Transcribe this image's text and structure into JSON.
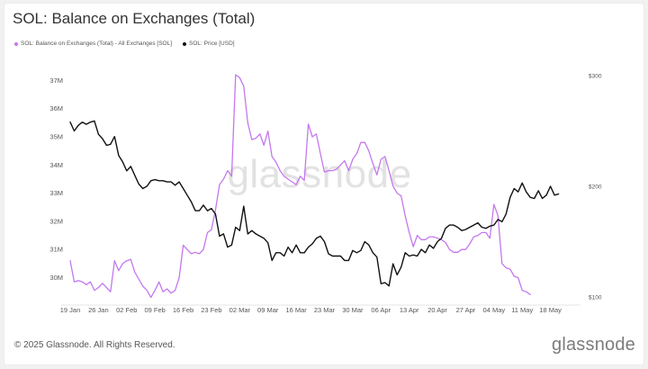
{
  "title": "SOL: Balance on Exchanges (Total)",
  "footer": "© 2025 Glassnode. All Rights Reserved.",
  "brand": "glassnode",
  "watermark": "glassnode",
  "chart_data": {
    "type": "line",
    "title": "SOL: Balance on Exchanges (Total)",
    "x_tick_labels": [
      "19 Jan",
      "26 Jan",
      "02 Feb",
      "09 Feb",
      "16 Feb",
      "23 Feb",
      "02 Mar",
      "09 Mar",
      "16 Mar",
      "23 Mar",
      "30 Mar",
      "06 Apr",
      "13 Apr",
      "20 Apr",
      "27 Apr",
      "04 May",
      "11 May",
      "18 May"
    ],
    "x_tick_days": [
      0,
      7,
      14,
      21,
      28,
      35,
      42,
      49,
      56,
      63,
      70,
      77,
      84,
      91,
      98,
      105,
      112,
      119
    ],
    "x_range_days": [
      0,
      126
    ],
    "left_axis": {
      "ticks": [
        30,
        31,
        32,
        33,
        34,
        35,
        36,
        37
      ],
      "tick_labels": [
        "30M",
        "31M",
        "32M",
        "33M",
        "34M",
        "35M",
        "36M",
        "37M"
      ],
      "range": [
        29.25,
        37.3
      ]
    },
    "right_axis": {
      "ticks": [
        100,
        200,
        300
      ],
      "tick_labels": [
        "$100",
        "$200",
        "$300"
      ],
      "range": [
        100,
        300
      ]
    },
    "grid": false,
    "legend_position": "top-left",
    "series": [
      {
        "name": "SOL: Balance on Exchanges (Total) - All Exchanges [SOL]",
        "color": "#c478ee",
        "axis": "left",
        "points": [
          [
            0,
            30.6
          ],
          [
            1,
            29.85
          ],
          [
            2,
            29.9
          ],
          [
            3,
            29.85
          ],
          [
            4,
            29.75
          ],
          [
            5,
            29.85
          ],
          [
            6,
            29.55
          ],
          [
            7,
            29.65
          ],
          [
            8,
            29.8
          ],
          [
            9,
            29.65
          ],
          [
            10,
            29.5
          ],
          [
            11,
            30.6
          ],
          [
            12,
            30.25
          ],
          [
            13,
            30.5
          ],
          [
            14,
            30.6
          ],
          [
            15,
            30.65
          ],
          [
            16,
            30.2
          ],
          [
            17,
            29.95
          ],
          [
            18,
            29.7
          ],
          [
            19,
            29.55
          ],
          [
            20,
            29.3
          ],
          [
            21,
            29.55
          ],
          [
            22,
            29.85
          ],
          [
            23,
            29.5
          ],
          [
            24,
            29.6
          ],
          [
            25,
            29.45
          ],
          [
            26,
            29.55
          ],
          [
            27,
            30
          ],
          [
            28,
            31.15
          ],
          [
            29,
            31
          ],
          [
            30,
            30.85
          ],
          [
            31,
            30.9
          ],
          [
            32,
            30.85
          ],
          [
            33,
            31
          ],
          [
            34,
            31.6
          ],
          [
            35,
            31.7
          ],
          [
            36,
            32.4
          ],
          [
            37,
            33.3
          ],
          [
            38,
            33.5
          ],
          [
            39,
            33.8
          ],
          [
            40,
            33.6
          ],
          [
            41,
            37.2
          ],
          [
            42,
            37.1
          ],
          [
            43,
            36.8
          ],
          [
            44,
            35.5
          ],
          [
            45,
            34.9
          ],
          [
            46,
            34.95
          ],
          [
            47,
            35.1
          ],
          [
            48,
            34.7
          ],
          [
            49,
            35.2
          ],
          [
            50,
            34.3
          ],
          [
            51,
            34.1
          ],
          [
            52,
            33.8
          ],
          [
            53,
            33.6
          ],
          [
            54,
            33.5
          ],
          [
            55,
            33.4
          ],
          [
            56,
            33.3
          ],
          [
            57,
            33.6
          ],
          [
            58,
            33.45
          ],
          [
            59,
            35.45
          ],
          [
            60,
            35
          ],
          [
            61,
            35.1
          ],
          [
            62,
            34.4
          ],
          [
            63,
            33.75
          ],
          [
            64,
            33.8
          ],
          [
            65,
            33.8
          ],
          [
            66,
            33.85
          ],
          [
            67,
            34
          ],
          [
            68,
            34.15
          ],
          [
            69,
            33.8
          ],
          [
            70,
            34.2
          ],
          [
            71,
            34.4
          ],
          [
            72,
            34.8
          ],
          [
            73,
            34.8
          ],
          [
            74,
            34.5
          ],
          [
            75,
            34.05
          ],
          [
            76,
            33.65
          ],
          [
            77,
            34.2
          ],
          [
            78,
            34.3
          ],
          [
            79,
            33.8
          ],
          [
            80,
            33.25
          ],
          [
            81,
            33
          ],
          [
            82,
            32.9
          ],
          [
            83,
            32.2
          ],
          [
            84,
            31.6
          ],
          [
            85,
            31.1
          ],
          [
            86,
            31.5
          ],
          [
            87,
            31.35
          ],
          [
            88,
            31.35
          ],
          [
            89,
            31.45
          ],
          [
            90,
            31.45
          ],
          [
            91,
            31.4
          ],
          [
            92,
            31.35
          ],
          [
            93,
            31.25
          ],
          [
            94,
            31
          ],
          [
            95,
            30.9
          ],
          [
            96,
            30.9
          ],
          [
            97,
            31
          ],
          [
            98,
            31
          ],
          [
            99,
            31.2
          ],
          [
            100,
            31.45
          ],
          [
            101,
            31.5
          ],
          [
            102,
            31.6
          ],
          [
            103,
            31.6
          ],
          [
            104,
            31.4
          ],
          [
            105,
            32.6
          ],
          [
            106,
            32.2
          ],
          [
            107,
            30.5
          ],
          [
            108,
            30.35
          ],
          [
            109,
            30.3
          ],
          [
            110,
            30.05
          ],
          [
            111,
            30
          ],
          [
            112,
            29.55
          ],
          [
            113,
            29.5
          ],
          [
            114,
            29.4
          ]
        ]
      },
      {
        "name": "SOL: Price [USD]",
        "color": "#111111",
        "axis": "right",
        "points": [
          [
            0,
            258
          ],
          [
            1,
            250
          ],
          [
            2,
            255
          ],
          [
            3,
            258
          ],
          [
            4,
            256
          ],
          [
            5,
            258
          ],
          [
            6,
            259
          ],
          [
            7,
            247
          ],
          [
            8,
            243
          ],
          [
            9,
            237
          ],
          [
            10,
            238
          ],
          [
            11,
            245
          ],
          [
            12,
            228
          ],
          [
            13,
            222
          ],
          [
            14,
            214
          ],
          [
            15,
            218
          ],
          [
            16,
            210
          ],
          [
            17,
            202
          ],
          [
            18,
            198
          ],
          [
            19,
            200
          ],
          [
            20,
            205
          ],
          [
            21,
            206
          ],
          [
            22,
            205
          ],
          [
            23,
            205
          ],
          [
            24,
            204
          ],
          [
            25,
            204
          ],
          [
            26,
            201
          ],
          [
            27,
            204
          ],
          [
            28,
            198
          ],
          [
            29,
            192
          ],
          [
            30,
            186
          ],
          [
            31,
            178
          ],
          [
            32,
            178
          ],
          [
            33,
            183
          ],
          [
            34,
            178
          ],
          [
            35,
            180
          ],
          [
            36,
            175
          ],
          [
            37,
            155
          ],
          [
            38,
            157
          ],
          [
            39,
            145
          ],
          [
            40,
            147
          ],
          [
            41,
            163
          ],
          [
            42,
            160
          ],
          [
            43,
            182
          ],
          [
            44,
            157
          ],
          [
            45,
            160
          ],
          [
            46,
            157
          ],
          [
            47,
            155
          ],
          [
            48,
            153
          ],
          [
            49,
            149
          ],
          [
            50,
            133
          ],
          [
            51,
            140
          ],
          [
            52,
            140
          ],
          [
            53,
            137
          ],
          [
            54,
            145
          ],
          [
            55,
            140
          ],
          [
            56,
            147
          ],
          [
            57,
            140
          ],
          [
            58,
            140
          ],
          [
            59,
            145
          ],
          [
            60,
            148
          ],
          [
            61,
            153
          ],
          [
            62,
            155
          ],
          [
            63,
            150
          ],
          [
            64,
            139
          ],
          [
            65,
            137
          ],
          [
            66,
            137
          ],
          [
            67,
            137
          ],
          [
            68,
            133
          ],
          [
            69,
            133
          ],
          [
            70,
            142
          ],
          [
            71,
            140
          ],
          [
            72,
            142
          ],
          [
            73,
            150
          ],
          [
            74,
            147
          ],
          [
            75,
            140
          ],
          [
            76,
            136
          ],
          [
            77,
            112
          ],
          [
            78,
            113
          ],
          [
            79,
            110
          ],
          [
            80,
            130
          ],
          [
            81,
            120
          ],
          [
            82,
            127
          ],
          [
            83,
            140
          ],
          [
            84,
            137
          ],
          [
            85,
            138
          ],
          [
            86,
            137
          ],
          [
            87,
            143
          ],
          [
            88,
            140
          ],
          [
            89,
            147
          ],
          [
            90,
            144
          ],
          [
            91,
            150
          ],
          [
            92,
            153
          ],
          [
            93,
            162
          ],
          [
            94,
            165
          ],
          [
            95,
            165
          ],
          [
            96,
            163
          ],
          [
            97,
            160
          ],
          [
            98,
            161
          ],
          [
            99,
            163
          ],
          [
            100,
            165
          ],
          [
            101,
            167
          ],
          [
            102,
            163
          ],
          [
            103,
            162
          ],
          [
            104,
            164
          ],
          [
            105,
            165
          ],
          [
            106,
            170
          ],
          [
            107,
            168
          ],
          [
            108,
            175
          ],
          [
            109,
            190
          ],
          [
            110,
            198
          ],
          [
            111,
            195
          ],
          [
            112,
            203
          ],
          [
            113,
            195
          ],
          [
            114,
            190
          ],
          [
            115,
            189
          ],
          [
            116,
            196
          ],
          [
            117,
            189
          ],
          [
            118,
            192
          ],
          [
            119,
            200
          ],
          [
            120,
            192
          ],
          [
            121,
            193
          ]
        ]
      }
    ]
  }
}
